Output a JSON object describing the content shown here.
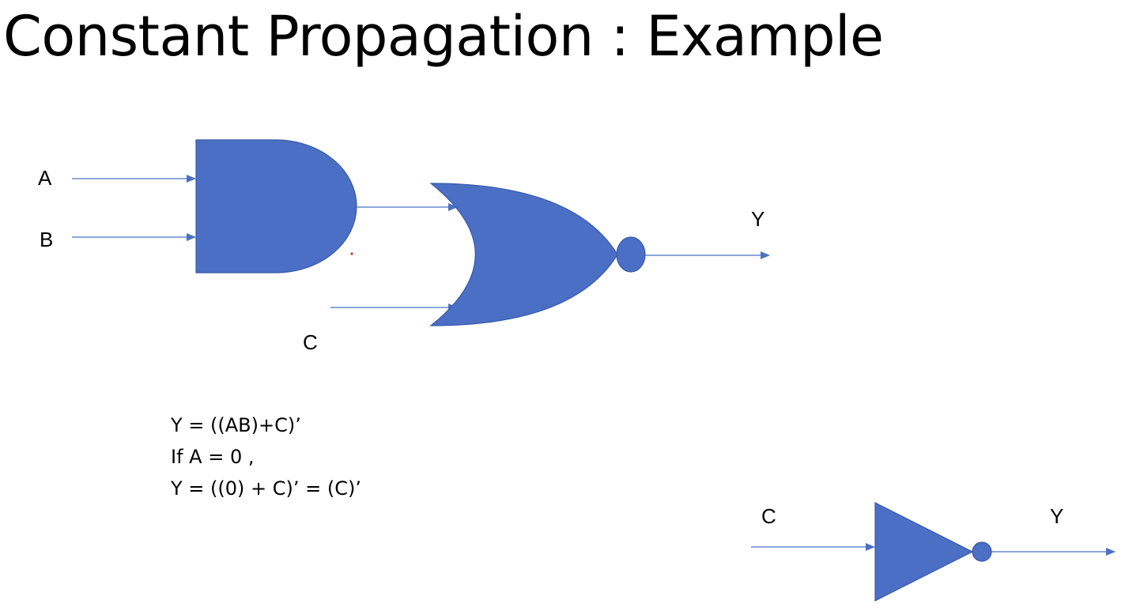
{
  "title": "Constant Propagation : Example",
  "colors": {
    "gate_fill": "#4a6fc5",
    "gate_stroke": "#3a5aa8",
    "wire": "#4a72c4"
  },
  "circuit_original": {
    "inputs": [
      "A",
      "B",
      "C"
    ],
    "output": "Y",
    "gates": [
      "and-gate",
      "nor-gate"
    ]
  },
  "equations": [
    "Y  = ((AB)+C)’",
    "If A = 0 ,",
    "Y = ((0) + C)’ = (C)’"
  ],
  "circuit_simplified": {
    "input": "C",
    "output": "Y",
    "gates": [
      "not-gate"
    ]
  }
}
